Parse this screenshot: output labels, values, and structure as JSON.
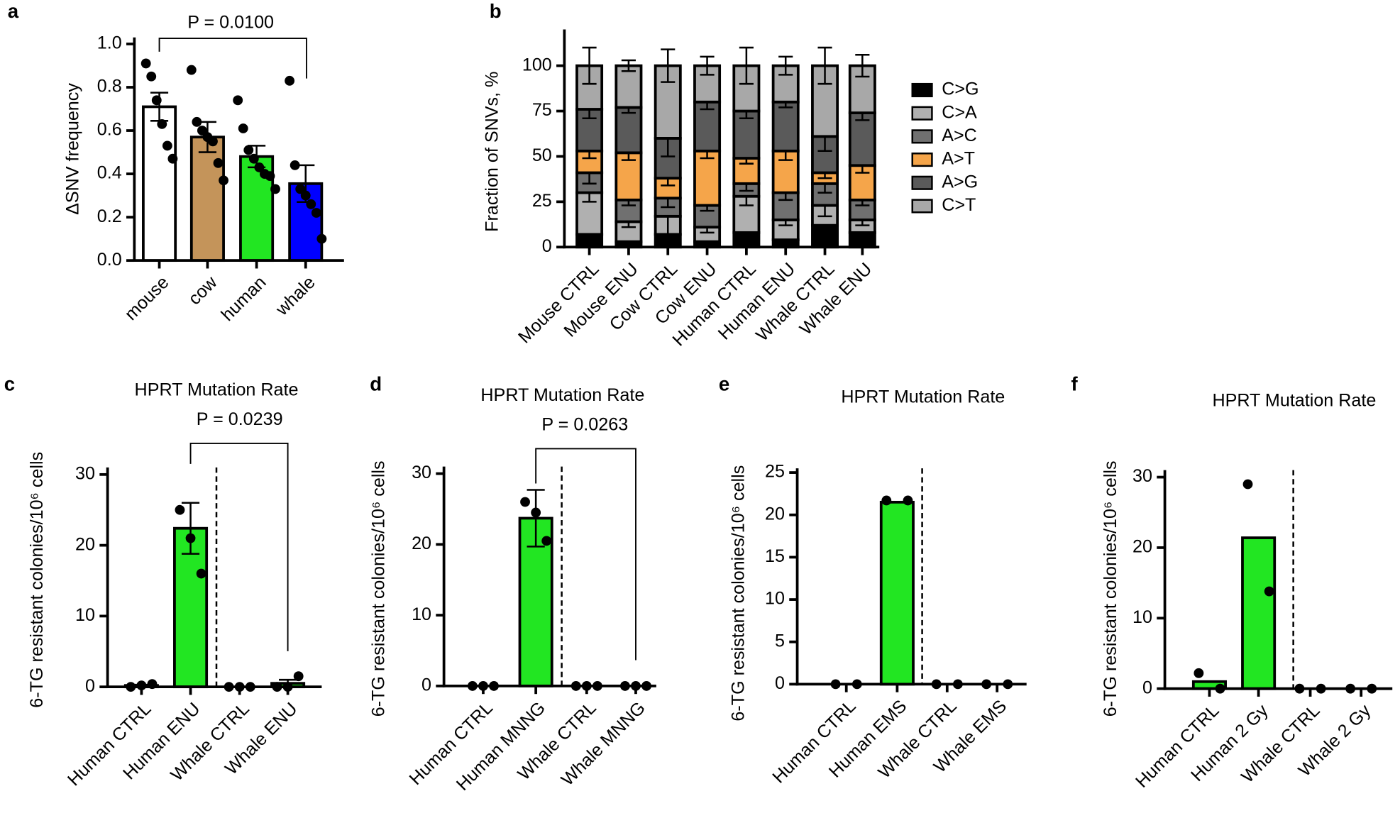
{
  "chart_data": [
    {
      "type": "bar",
      "panel_label": "a",
      "y_label": "ΔSNV frequency",
      "annotation": "P = 0.0100",
      "categories": [
        "mouse",
        "cow",
        "human",
        "whale"
      ],
      "values": [
        0.71,
        0.57,
        0.48,
        0.355
      ],
      "errors": [
        0.065,
        0.07,
        0.05,
        0.085
      ],
      "colors": [
        "#ffffff",
        "#c4945a",
        "#22e622",
        "#0000ff"
      ],
      "points": [
        [
          0.91,
          0.85,
          0.74,
          0.63,
          0.53,
          0.47
        ],
        [
          0.88,
          0.64,
          0.6,
          0.57,
          0.55,
          0.45,
          0.37
        ],
        [
          0.74,
          0.61,
          0.51,
          0.47,
          0.43,
          0.4,
          0.39,
          0.33
        ],
        [
          0.83,
          0.44,
          0.33,
          0.3,
          0.26,
          0.22,
          0.1
        ]
      ],
      "ylim": [
        0,
        1.03
      ],
      "yticks": [
        {
          "value": 0,
          "label": "0.0"
        },
        {
          "value": 0.2,
          "label": "0.2"
        },
        {
          "value": 0.4,
          "label": "0.4"
        },
        {
          "value": 0.6,
          "label": "0.6"
        },
        {
          "value": 0.8,
          "label": "0.8"
        },
        {
          "value": 1,
          "label": "1.0"
        }
      ]
    },
    {
      "type": "stacked_bar",
      "panel_label": "b",
      "y_label": "Fraction of SNVs, %",
      "categories": [
        "Mouse CTRL",
        "Mouse ENU",
        "Cow CTRL",
        "Cow ENU",
        "Human CTRL",
        "Human ENU",
        "Whale CTRL",
        "Whale ENU"
      ],
      "series": [
        {
          "name": "C>G",
          "color": "#000000",
          "values": [
            7,
            3,
            7,
            3,
            8,
            4,
            12,
            8
          ],
          "errors": [
            2,
            1,
            2,
            1,
            2,
            1,
            3,
            2
          ]
        },
        {
          "name": "C>A",
          "color": "#b0b0b0",
          "values": [
            23,
            11,
            10,
            8,
            20,
            11,
            11,
            7
          ],
          "errors": [
            5,
            3,
            10,
            3,
            5,
            3,
            6,
            3
          ]
        },
        {
          "name": "A>C",
          "color": "#707070",
          "values": [
            11,
            12,
            10,
            12,
            7,
            15,
            12,
            11
          ],
          "errors": [
            6,
            3,
            5,
            3,
            4,
            4,
            5,
            3
          ]
        },
        {
          "name": "A>T",
          "color": "#f5a54a",
          "values": [
            12,
            26,
            11,
            30,
            14,
            23,
            6,
            19
          ],
          "errors": [
            4,
            4,
            4,
            4,
            3,
            5,
            3,
            4
          ]
        },
        {
          "name": "A>G",
          "color": "#5a5a5a",
          "values": [
            23,
            25,
            22,
            27,
            26,
            27,
            20,
            29
          ],
          "errors": [
            5,
            3,
            10,
            4,
            4,
            3,
            8,
            4
          ]
        },
        {
          "name": "C>T",
          "color": "#a8a8a8",
          "values": [
            24,
            23,
            40,
            20,
            25,
            20,
            39,
            26
          ],
          "errors": [
            10,
            3,
            9,
            5,
            10,
            5,
            10,
            6
          ]
        }
      ],
      "ylim": [
        0,
        120
      ],
      "yticks": [
        0,
        25,
        50,
        75,
        100
      ]
    },
    {
      "type": "bar",
      "panel_label": "c",
      "title": "HPRT Mutation Rate",
      "y_label": "6-TG resistant colonies/10⁶ cells",
      "annotation": "P = 0.0239",
      "categories": [
        "Human CTRL",
        "Human ENU",
        "Whale CTRL",
        "Whale ENU"
      ],
      "values": [
        0.2,
        22.4,
        0,
        0.5
      ],
      "errors": [
        0.1,
        3.6,
        0,
        0.5
      ],
      "colors": [
        "#22e622",
        "#22e622",
        "#22e622",
        "#22e622"
      ],
      "points": [
        [
          0,
          0.2,
          0.4
        ],
        [
          25,
          21,
          16
        ],
        [
          0,
          0,
          0
        ],
        [
          0,
          0,
          1.5
        ]
      ],
      "ylim": [
        0,
        31
      ],
      "yticks": [
        0,
        10,
        20,
        30
      ]
    },
    {
      "type": "bar",
      "panel_label": "d",
      "title": "HPRT Mutation Rate",
      "y_label": "6-TG resistant colonies/10⁶ cells",
      "annotation": "P = 0.0263",
      "categories": [
        "Human CTRL",
        "Human MNNG",
        "Whale CTRL",
        "Whale MNNG"
      ],
      "values": [
        0,
        23.7,
        0,
        0
      ],
      "errors": [
        0,
        4,
        0,
        0
      ],
      "colors": [
        "#22e622",
        "#22e622",
        "#22e622",
        "#22e622"
      ],
      "points": [
        [
          0,
          0,
          0
        ],
        [
          26,
          24.5,
          20.5
        ],
        [
          0,
          0,
          0
        ],
        [
          0,
          0,
          0
        ]
      ],
      "ylim": [
        0,
        31
      ],
      "yticks": [
        0,
        10,
        20,
        30
      ]
    },
    {
      "type": "bar",
      "panel_label": "e",
      "title": "HPRT Mutation Rate",
      "y_label": "6-TG resistant colonies/10⁶ cells",
      "categories": [
        "Human CTRL",
        "Human EMS",
        "Whale CTRL",
        "Whale EMS"
      ],
      "values": [
        0,
        21.5,
        0,
        0
      ],
      "colors": [
        "#22e622",
        "#22e622",
        "#22e622",
        "#22e622"
      ],
      "points": [
        [
          0,
          0
        ],
        [
          21.7,
          21.7
        ],
        [
          0,
          0
        ],
        [
          0,
          0
        ]
      ],
      "ylim": [
        0,
        25.5
      ],
      "yticks": [
        0,
        5,
        10,
        15,
        20,
        25
      ]
    },
    {
      "type": "bar",
      "panel_label": "f",
      "title": "HPRT Mutation Rate",
      "y_label": "6-TG resistant colonies/10⁶ cells",
      "categories": [
        "Human CTRL",
        "Human 2 Gy",
        "Whale CTRL",
        "Whale 2 Gy"
      ],
      "values": [
        1,
        21.4,
        0,
        0
      ],
      "colors": [
        "#22e622",
        "#22e622",
        "#22e622",
        "#22e622"
      ],
      "points": [
        [
          2.2,
          0
        ],
        [
          29,
          13.8
        ],
        [
          0,
          0
        ],
        [
          0,
          0
        ]
      ],
      "ylim": [
        0,
        31
      ],
      "yticks": [
        0,
        10,
        20,
        30
      ]
    }
  ]
}
